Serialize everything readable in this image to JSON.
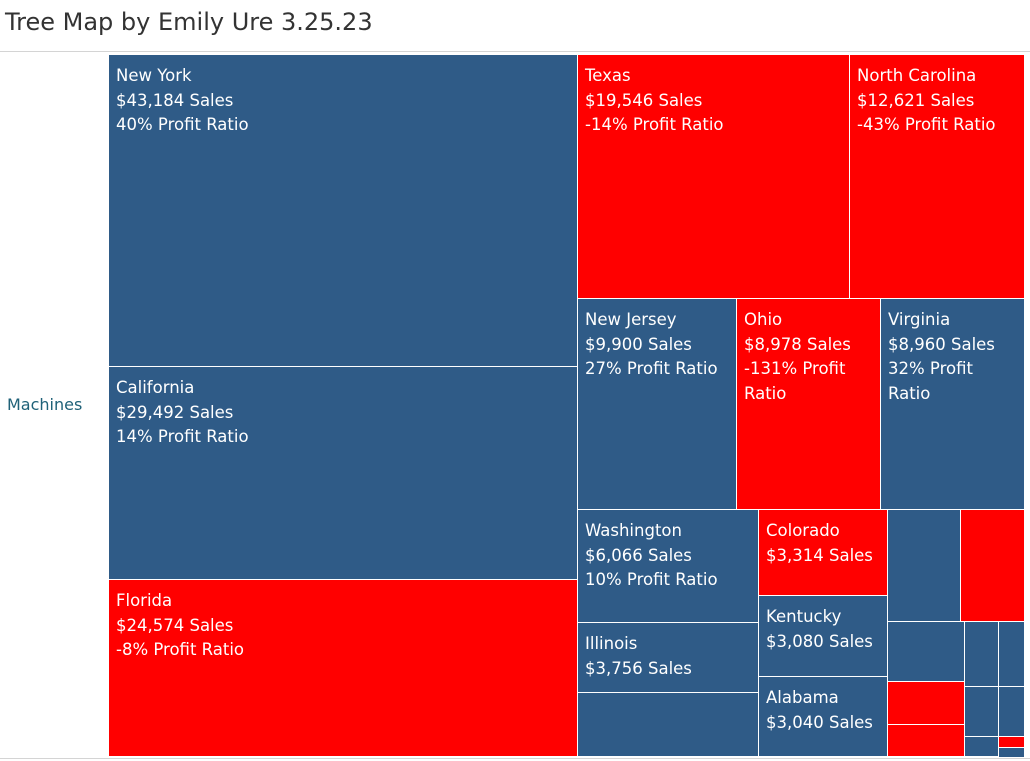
{
  "title": "Tree Map by Emily Ure 3.25.23",
  "row_label": "Machines",
  "colors": {
    "positive": "#2f5b87",
    "negative": "#ff0000"
  },
  "chart_data": {
    "type": "treemap",
    "category": "Machines",
    "size_measure": "Sales",
    "color_measure": "Profit Ratio",
    "cells": [
      {
        "name": "New York",
        "sales": 43184,
        "profit_ratio": 0.4,
        "lines": [
          "New York",
          "$43,184 Sales",
          "40% Profit Ratio"
        ]
      },
      {
        "name": "California",
        "sales": 29492,
        "profit_ratio": 0.14,
        "lines": [
          "California",
          "$29,492 Sales",
          "14% Profit Ratio"
        ]
      },
      {
        "name": "Florida",
        "sales": 24574,
        "profit_ratio": -0.08,
        "lines": [
          "Florida",
          "$24,574 Sales",
          "-8% Profit Ratio"
        ]
      },
      {
        "name": "Texas",
        "sales": 19546,
        "profit_ratio": -0.14,
        "lines": [
          "Texas",
          "$19,546 Sales",
          "-14% Profit Ratio"
        ]
      },
      {
        "name": "North Carolina",
        "sales": 12621,
        "profit_ratio": -0.43,
        "lines": [
          "North Carolina",
          "$12,621 Sales",
          "-43% Profit Ratio"
        ]
      },
      {
        "name": "New Jersey",
        "sales": 9900,
        "profit_ratio": 0.27,
        "lines": [
          "New Jersey",
          "$9,900 Sales",
          "27% Profit Ratio"
        ]
      },
      {
        "name": "Ohio",
        "sales": 8978,
        "profit_ratio": -1.31,
        "lines": [
          "Ohio",
          "$8,978 Sales",
          "-131% Profit Ratio"
        ]
      },
      {
        "name": "Virginia",
        "sales": 8960,
        "profit_ratio": 0.32,
        "lines": [
          "Virginia",
          "$8,960 Sales",
          "32% Profit Ratio"
        ]
      },
      {
        "name": "Washington",
        "sales": 6066,
        "profit_ratio": 0.1,
        "lines": [
          "Washington",
          "$6,066 Sales",
          "10% Profit Ratio"
        ]
      },
      {
        "name": "Illinois",
        "sales": 3756,
        "sign": "positive",
        "lines": [
          "Illinois",
          "$3,756 Sales"
        ]
      },
      {
        "name": "Colorado",
        "sales": 3314,
        "sign": "negative",
        "lines": [
          "Colorado",
          "$3,314 Sales"
        ]
      },
      {
        "name": "Kentucky",
        "sales": 3080,
        "sign": "positive",
        "lines": [
          "Kentucky",
          "$3,080 Sales"
        ]
      },
      {
        "name": "Alabama",
        "sales": 3040,
        "sign": "positive",
        "lines": [
          "Alabama",
          "$3,040 Sales"
        ]
      },
      {
        "name": "",
        "sign": "positive",
        "lines": []
      },
      {
        "name": "",
        "sign": "positive",
        "lines": []
      },
      {
        "name": "",
        "sign": "negative",
        "lines": []
      },
      {
        "name": "",
        "sign": "positive",
        "lines": []
      },
      {
        "name": "",
        "sign": "positive",
        "lines": []
      },
      {
        "name": "",
        "sign": "positive",
        "lines": []
      },
      {
        "name": "",
        "sign": "negative",
        "lines": []
      },
      {
        "name": "",
        "sign": "negative",
        "lines": []
      },
      {
        "name": "",
        "sign": "positive",
        "lines": []
      },
      {
        "name": "",
        "sign": "positive",
        "lines": []
      },
      {
        "name": "",
        "sign": "positive",
        "lines": []
      },
      {
        "name": "",
        "sign": "negative",
        "lines": []
      },
      {
        "name": "",
        "sign": "positive",
        "lines": []
      },
      {
        "name": "",
        "sign": "positive",
        "lines": []
      }
    ]
  }
}
